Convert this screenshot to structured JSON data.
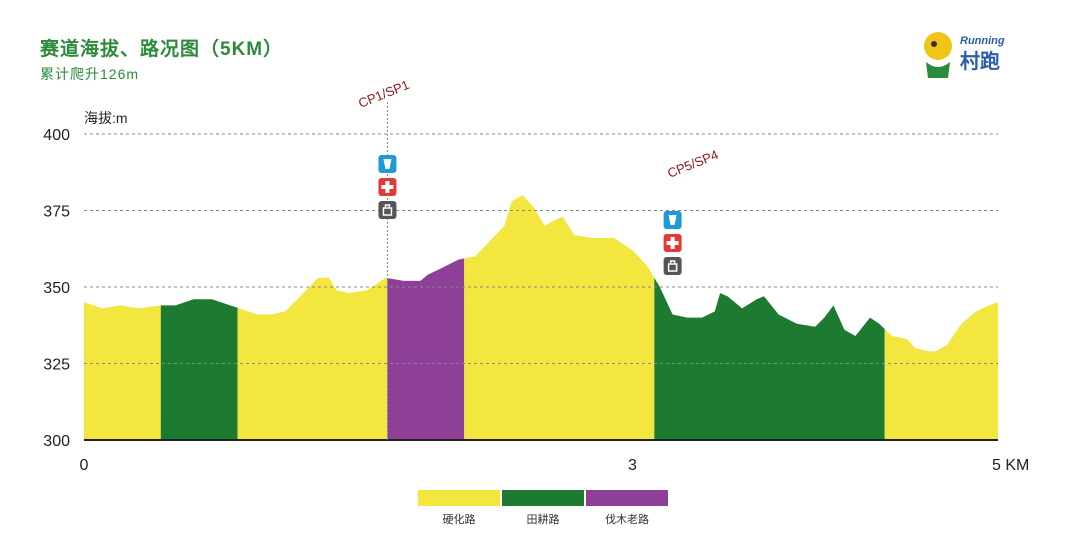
{
  "header": {
    "title": "赛道海拔、路况图（5KM）",
    "subtitle": "累计爬升126m"
  },
  "logo": {
    "text_top": "Running",
    "text_main": "村跑",
    "icon_name": "runner-mascot-logo"
  },
  "colors": {
    "hard_road": "#f2e63f",
    "field_road": "#1d7a31",
    "forest_road": "#8e3f98",
    "grid": "#888888",
    "checkpoint_label": "#8b1a1a",
    "water_icon": "#1e9ad6",
    "medical_icon": "#e53935",
    "storage_icon": "#555555"
  },
  "chart_data": {
    "type": "area",
    "title": "赛道海拔、路况图（5KM）",
    "subtitle": "累计爬升126m",
    "ylabel": "海拔:m",
    "xlabel": "",
    "x_unit": "KM",
    "ylim": [
      300,
      400
    ],
    "xlim": [
      0,
      5
    ],
    "yticks": [
      300,
      325,
      350,
      375,
      400
    ],
    "xticks": [
      {
        "value": 0,
        "label": "0"
      },
      {
        "value": 3,
        "label": "3"
      },
      {
        "value": 5,
        "label": "5 KM"
      }
    ],
    "grid": "horizontal dashed",
    "profile": [
      [
        0.0,
        345
      ],
      [
        0.1,
        343
      ],
      [
        0.2,
        344
      ],
      [
        0.3,
        343
      ],
      [
        0.42,
        344
      ],
      [
        0.5,
        344
      ],
      [
        0.6,
        346
      ],
      [
        0.7,
        346
      ],
      [
        0.8,
        344
      ],
      [
        0.9,
        342
      ],
      [
        0.95,
        341
      ],
      [
        1.02,
        341
      ],
      [
        1.1,
        342
      ],
      [
        1.2,
        348
      ],
      [
        1.28,
        353
      ],
      [
        1.34,
        353
      ],
      [
        1.38,
        349
      ],
      [
        1.45,
        348
      ],
      [
        1.55,
        349
      ],
      [
        1.65,
        353
      ],
      [
        1.75,
        352
      ],
      [
        1.84,
        352
      ],
      [
        1.88,
        354
      ],
      [
        1.95,
        356
      ],
      [
        2.05,
        359
      ],
      [
        2.14,
        360
      ],
      [
        2.22,
        365
      ],
      [
        2.3,
        370
      ],
      [
        2.34,
        378
      ],
      [
        2.4,
        380
      ],
      [
        2.46,
        376
      ],
      [
        2.52,
        370
      ],
      [
        2.58,
        372
      ],
      [
        2.62,
        373
      ],
      [
        2.68,
        367
      ],
      [
        2.78,
        366
      ],
      [
        2.9,
        366
      ],
      [
        3.0,
        362
      ],
      [
        3.08,
        357
      ],
      [
        3.15,
        350
      ],
      [
        3.22,
        341
      ],
      [
        3.3,
        340
      ],
      [
        3.38,
        340
      ],
      [
        3.45,
        342
      ],
      [
        3.48,
        348
      ],
      [
        3.52,
        347
      ],
      [
        3.6,
        343
      ],
      [
        3.68,
        346
      ],
      [
        3.72,
        347
      ],
      [
        3.8,
        341
      ],
      [
        3.9,
        338
      ],
      [
        4.0,
        337
      ],
      [
        4.05,
        340
      ],
      [
        4.1,
        344
      ],
      [
        4.16,
        336
      ],
      [
        4.22,
        334
      ],
      [
        4.3,
        340
      ],
      [
        4.35,
        338
      ],
      [
        4.42,
        334
      ],
      [
        4.5,
        333
      ],
      [
        4.55,
        330
      ],
      [
        4.62,
        329
      ],
      [
        4.66,
        329
      ],
      [
        4.72,
        331
      ],
      [
        4.8,
        338
      ],
      [
        4.88,
        342
      ],
      [
        4.95,
        344
      ],
      [
        5.0,
        345
      ]
    ],
    "segments": [
      {
        "start": 0.0,
        "end": 0.42,
        "surface": "hard_road"
      },
      {
        "start": 0.42,
        "end": 0.84,
        "surface": "field_road"
      },
      {
        "start": 0.84,
        "end": 1.66,
        "surface": "hard_road"
      },
      {
        "start": 1.66,
        "end": 2.08,
        "surface": "forest_road"
      },
      {
        "start": 2.08,
        "end": 3.12,
        "surface": "hard_road"
      },
      {
        "start": 3.12,
        "end": 4.38,
        "surface": "field_road"
      },
      {
        "start": 4.38,
        "end": 5.0,
        "surface": "hard_road"
      }
    ],
    "checkpoints": [
      {
        "label": "CP1/SP1",
        "x": 1.66,
        "icons": [
          "water-icon",
          "medical-icon",
          "storage-icon"
        ]
      },
      {
        "label": "CP5/SP4",
        "x": 3.22,
        "icons": [
          "water-icon",
          "medical-icon",
          "storage-icon"
        ]
      }
    ],
    "legend": [
      {
        "key": "hard_road",
        "label": "硬化路"
      },
      {
        "key": "field_road",
        "label": "田耕路"
      },
      {
        "key": "forest_road",
        "label": "伐木老路"
      }
    ]
  }
}
